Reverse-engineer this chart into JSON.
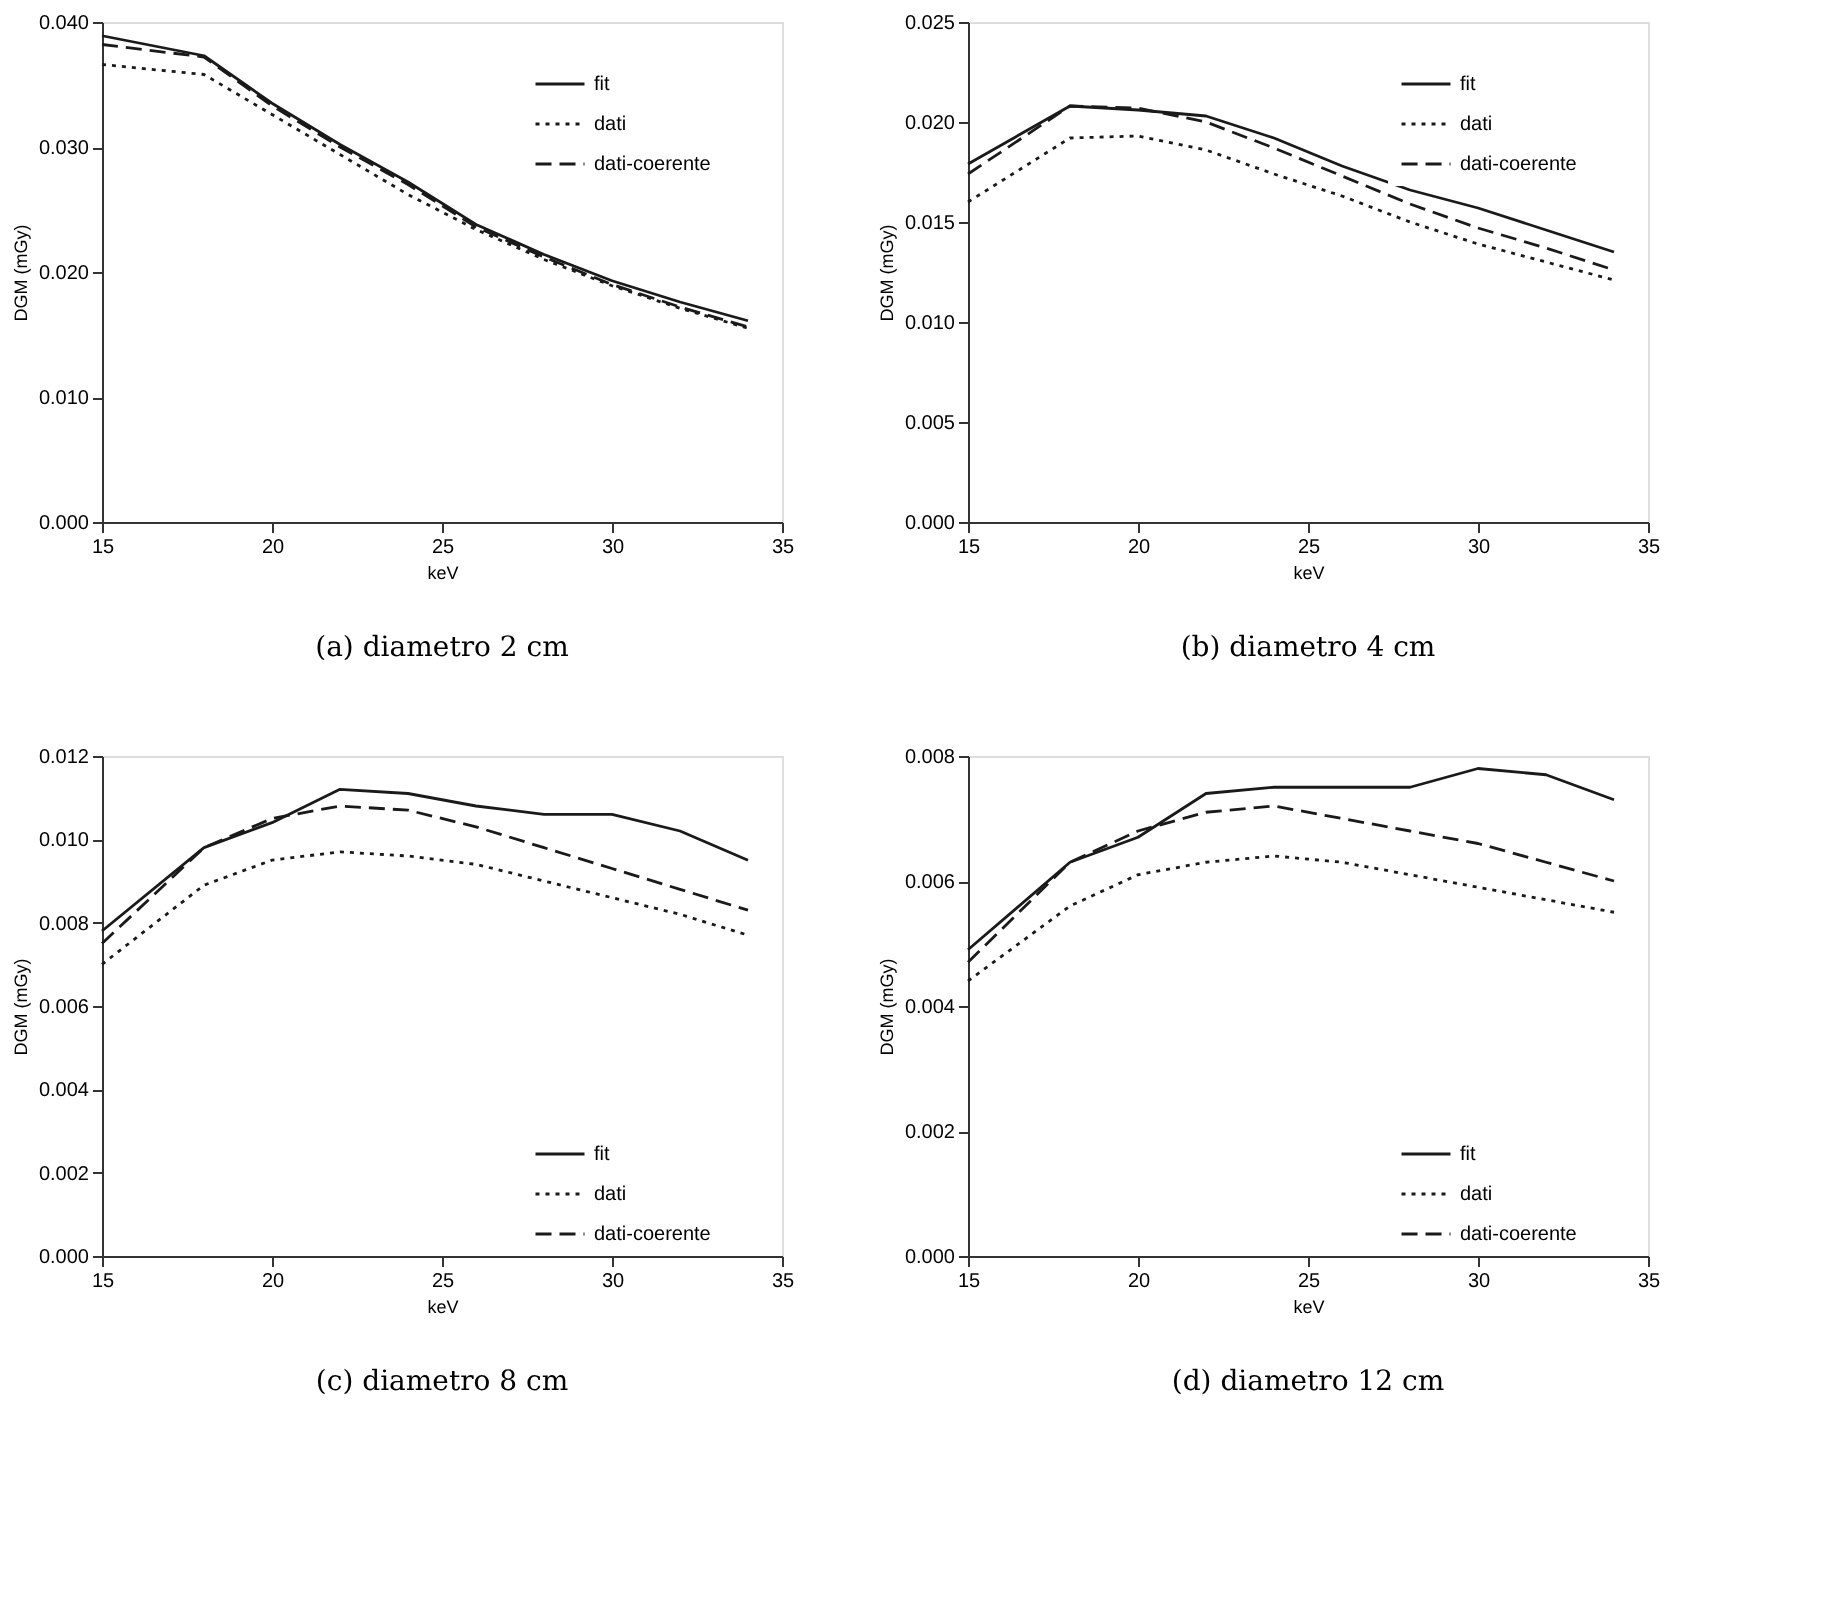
{
  "chart_data": [
    {
      "type": "line",
      "title": "(a) diametro 2 cm",
      "xlabel": "keV",
      "ylabel": "DGM (mGy)",
      "x": [
        15,
        18,
        20,
        22,
        24,
        26,
        28,
        30,
        32,
        34
      ],
      "xlim": [
        15,
        35
      ],
      "xticks": [
        15,
        20,
        25,
        30,
        35
      ],
      "ylim": [
        0,
        0.04
      ],
      "yticks": [
        {
          "value": 0,
          "label": "0.000"
        },
        {
          "value": 0.01,
          "label": "0.010"
        },
        {
          "value": 0.02,
          "label": "0.020"
        },
        {
          "value": 0.03,
          "label": "0.030"
        },
        {
          "value": 0.04,
          "label": "0.040"
        }
      ],
      "grid": false,
      "legend": "top right",
      "series": [
        {
          "name": "fit",
          "color": "#1a1a1a",
          "line_style": "solid",
          "values": [
            0.0389,
            0.0373,
            0.0335,
            0.0302,
            0.0272,
            0.0238,
            0.0214,
            0.0193,
            0.0176,
            0.0161
          ]
        },
        {
          "name": "dati",
          "color": "#1a1a1a",
          "line_style": "dotted",
          "values": [
            0.0366,
            0.0358,
            0.0326,
            0.0294,
            0.0262,
            0.0234,
            0.021,
            0.0189,
            0.0171,
            0.0155
          ]
        },
        {
          "name": "dati-coerente",
          "color": "#1a1a1a",
          "line_style": "dashed",
          "values": [
            0.0382,
            0.0372,
            0.0333,
            0.03,
            0.027,
            0.0236,
            0.0212,
            0.019,
            0.0172,
            0.0156
          ]
        }
      ]
    },
    {
      "type": "line",
      "title": "(b) diametro 4 cm",
      "xlabel": "keV",
      "ylabel": "DGM (mGy)",
      "x": [
        15,
        18,
        20,
        22,
        24,
        26,
        28,
        30,
        32,
        34
      ],
      "xlim": [
        15,
        35
      ],
      "xticks": [
        15,
        20,
        25,
        30,
        35
      ],
      "ylim": [
        0,
        0.025
      ],
      "yticks": [
        {
          "value": 0,
          "label": "0.000"
        },
        {
          "value": 0.005,
          "label": "0.005"
        },
        {
          "value": 0.01,
          "label": "0.010"
        },
        {
          "value": 0.015,
          "label": "0.015"
        },
        {
          "value": 0.02,
          "label": "0.020"
        },
        {
          "value": 0.025,
          "label": "0.025"
        }
      ],
      "grid": false,
      "legend": "top right",
      "series": [
        {
          "name": "fit",
          "color": "#1a1a1a",
          "line_style": "solid",
          "values": [
            0.0179,
            0.0208,
            0.0206,
            0.0203,
            0.0192,
            0.0178,
            0.0166,
            0.0157,
            0.0146,
            0.0135
          ]
        },
        {
          "name": "dati",
          "color": "#1a1a1a",
          "line_style": "dotted",
          "values": [
            0.016,
            0.0192,
            0.0193,
            0.0186,
            0.0174,
            0.0163,
            0.015,
            0.0139,
            0.013,
            0.0121
          ]
        },
        {
          "name": "dati-coerente",
          "color": "#1a1a1a",
          "line_style": "dashed",
          "values": [
            0.0174,
            0.0208,
            0.0207,
            0.02,
            0.0187,
            0.0173,
            0.0159,
            0.0147,
            0.0137,
            0.0126
          ]
        }
      ]
    },
    {
      "type": "line",
      "title": "(c) diametro 8 cm",
      "xlabel": "keV",
      "ylabel": "DGM (mGy)",
      "x": [
        15,
        18,
        20,
        22,
        24,
        26,
        28,
        30,
        32,
        34
      ],
      "xlim": [
        15,
        35
      ],
      "xticks": [
        15,
        20,
        25,
        30,
        35
      ],
      "ylim": [
        0,
        0.012
      ],
      "yticks": [
        {
          "value": 0,
          "label": "0.000"
        },
        {
          "value": 0.002,
          "label": "0.002"
        },
        {
          "value": 0.004,
          "label": "0.004"
        },
        {
          "value": 0.006,
          "label": "0.006"
        },
        {
          "value": 0.008,
          "label": "0.008"
        },
        {
          "value": 0.01,
          "label": "0.010"
        },
        {
          "value": 0.012,
          "label": "0.012"
        }
      ],
      "grid": false,
      "legend": "bottom right",
      "series": [
        {
          "name": "fit",
          "color": "#1a1a1a",
          "line_style": "solid",
          "values": [
            0.0078,
            0.0098,
            0.0104,
            0.0112,
            0.0111,
            0.0108,
            0.0106,
            0.0106,
            0.0102,
            0.0095
          ]
        },
        {
          "name": "dati",
          "color": "#1a1a1a",
          "line_style": "dotted",
          "values": [
            0.007,
            0.0089,
            0.0095,
            0.0097,
            0.0096,
            0.0094,
            0.009,
            0.0086,
            0.0082,
            0.0077
          ]
        },
        {
          "name": "dati-coerente",
          "color": "#1a1a1a",
          "line_style": "dashed",
          "values": [
            0.0075,
            0.0098,
            0.0105,
            0.0108,
            0.0107,
            0.0103,
            0.0098,
            0.0093,
            0.0088,
            0.0083
          ]
        }
      ]
    },
    {
      "type": "line",
      "title": "(d) diametro 12 cm",
      "xlabel": "keV",
      "ylabel": "DGM (mGy)",
      "x": [
        15,
        18,
        20,
        22,
        24,
        26,
        28,
        30,
        32,
        34
      ],
      "xlim": [
        15,
        35
      ],
      "xticks": [
        15,
        20,
        25,
        30,
        35
      ],
      "ylim": [
        0,
        0.008
      ],
      "yticks": [
        {
          "value": 0,
          "label": "0.000"
        },
        {
          "value": 0.002,
          "label": "0.002"
        },
        {
          "value": 0.004,
          "label": "0.004"
        },
        {
          "value": 0.006,
          "label": "0.006"
        },
        {
          "value": 0.008,
          "label": "0.008"
        }
      ],
      "grid": false,
      "legend": "bottom right",
      "series": [
        {
          "name": "fit",
          "color": "#1a1a1a",
          "line_style": "solid",
          "values": [
            0.0049,
            0.0063,
            0.0067,
            0.0074,
            0.0075,
            0.0075,
            0.0075,
            0.0078,
            0.0077,
            0.0073
          ]
        },
        {
          "name": "dati",
          "color": "#1a1a1a",
          "line_style": "dotted",
          "values": [
            0.0044,
            0.0056,
            0.0061,
            0.0063,
            0.0064,
            0.0063,
            0.0061,
            0.0059,
            0.0057,
            0.0055
          ]
        },
        {
          "name": "dati-coerente",
          "color": "#1a1a1a",
          "line_style": "dashed",
          "values": [
            0.0047,
            0.0063,
            0.0068,
            0.0071,
            0.0072,
            0.007,
            0.0068,
            0.0066,
            0.0063,
            0.006
          ]
        }
      ]
    }
  ]
}
